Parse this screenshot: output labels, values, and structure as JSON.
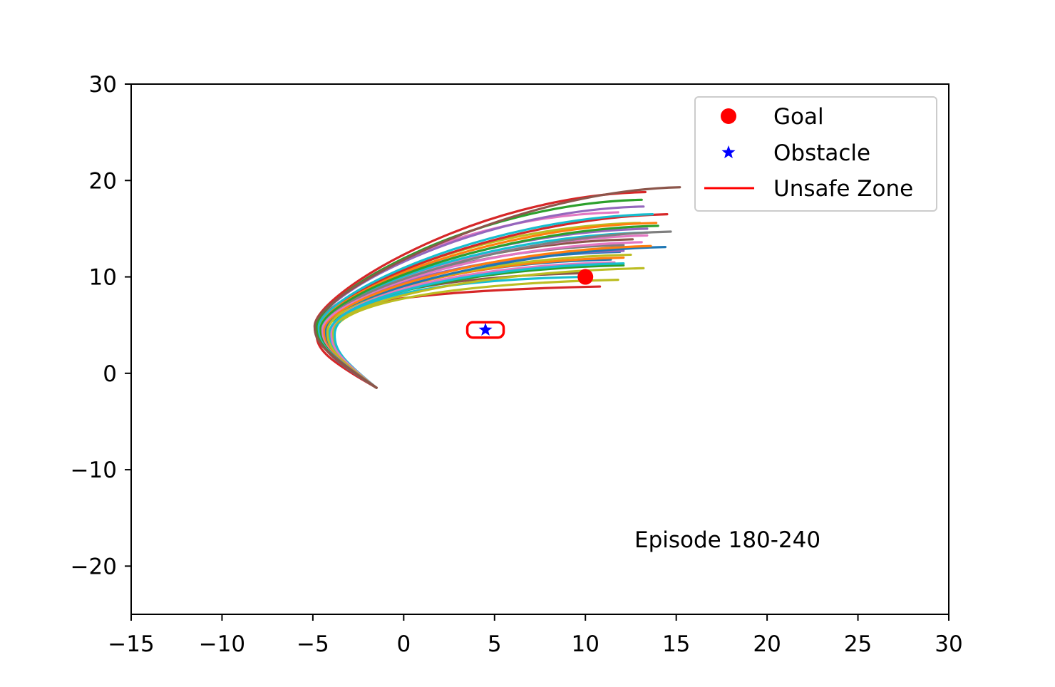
{
  "chart_data": {
    "type": "line",
    "xlim": [
      -15,
      30
    ],
    "ylim": [
      -25,
      30
    ],
    "x_ticks": [
      -15,
      -10,
      -5,
      0,
      5,
      10,
      15,
      20,
      25,
      30
    ],
    "y_ticks": [
      -20,
      -10,
      0,
      10,
      20,
      30
    ],
    "x_tick_labels": [
      "−15",
      "−10",
      "−5",
      "0",
      "5",
      "10",
      "15",
      "20",
      "25",
      "30"
    ],
    "y_tick_labels": [
      "−20",
      "−10",
      "0",
      "10",
      "20",
      "30"
    ],
    "grid": false,
    "legend_position": "top-right",
    "annotation": "Episode 180-240",
    "legend": [
      {
        "label": "Goal",
        "marker": "circle",
        "color": "#ff0000"
      },
      {
        "label": "Obstacle",
        "marker": "star",
        "color": "#0000ff"
      },
      {
        "label": "Unsafe Zone",
        "marker": "line",
        "color": "#ff0000"
      }
    ],
    "goal": {
      "x": 10,
      "y": 10
    },
    "obstacle": {
      "x": 4.5,
      "y": 4.5
    },
    "unsafe_zone": {
      "x_range": [
        3.5,
        5.5
      ],
      "y_range": [
        3.7,
        5.3
      ]
    },
    "trajectory_start": {
      "x": -1.5,
      "y": -1.5
    },
    "trajectories": [
      {
        "color": "#d62728",
        "turn": {
          "x": -4.8,
          "y": 4.2
        },
        "end": {
          "x": 10.8,
          "y": 9.0
        }
      },
      {
        "color": "#bcbd22",
        "turn": {
          "x": -3.9,
          "y": 4.0
        },
        "end": {
          "x": 11.8,
          "y": 9.7
        }
      },
      {
        "color": "#17becf",
        "turn": {
          "x": -3.8,
          "y": 4.0
        },
        "end": {
          "x": 9.8,
          "y": 10.0
        }
      },
      {
        "color": "#8c564b",
        "turn": {
          "x": -4.4,
          "y": 4.1
        },
        "end": {
          "x": 10.2,
          "y": 10.4
        }
      },
      {
        "color": "#bcbd22",
        "turn": {
          "x": -4.0,
          "y": 4.1
        },
        "end": {
          "x": 13.2,
          "y": 10.9
        }
      },
      {
        "color": "#2ca02c",
        "turn": {
          "x": -4.3,
          "y": 4.1
        },
        "end": {
          "x": 12.1,
          "y": 11.2
        }
      },
      {
        "color": "#e377c2",
        "turn": {
          "x": -4.0,
          "y": 4.2
        },
        "end": {
          "x": 11.6,
          "y": 11.5
        }
      },
      {
        "color": "#17becf",
        "turn": {
          "x": -4.1,
          "y": 4.1
        },
        "end": {
          "x": 12.1,
          "y": 11.4
        }
      },
      {
        "color": "#1f77b4",
        "turn": {
          "x": -4.3,
          "y": 4.2
        },
        "end": {
          "x": 11.4,
          "y": 11.8
        }
      },
      {
        "color": "#ff7f0e",
        "turn": {
          "x": -4.5,
          "y": 4.2
        },
        "end": {
          "x": 12.1,
          "y": 12.0
        }
      },
      {
        "color": "#bcbd22",
        "turn": {
          "x": -4.2,
          "y": 4.3
        },
        "end": {
          "x": 12.5,
          "y": 12.3
        }
      },
      {
        "color": "#1f77b4",
        "turn": {
          "x": -4.4,
          "y": 4.3
        },
        "end": {
          "x": 11.9,
          "y": 12.6
        }
      },
      {
        "color": "#9467bd",
        "turn": {
          "x": -4.4,
          "y": 4.4
        },
        "end": {
          "x": 12.1,
          "y": 12.7
        }
      },
      {
        "color": "#1f77b4",
        "turn": {
          "x": -4.6,
          "y": 4.3
        },
        "end": {
          "x": 14.4,
          "y": 13.1
        }
      },
      {
        "color": "#ff7f0e",
        "turn": {
          "x": -4.4,
          "y": 4.4
        },
        "end": {
          "x": 13.6,
          "y": 13.2
        }
      },
      {
        "color": "#7f7f7f",
        "turn": {
          "x": -4.5,
          "y": 4.4
        },
        "end": {
          "x": 12.1,
          "y": 13.3
        }
      },
      {
        "color": "#e377c2",
        "turn": {
          "x": -4.5,
          "y": 4.4
        },
        "end": {
          "x": 13.1,
          "y": 13.6
        }
      },
      {
        "color": "#8c564b",
        "turn": {
          "x": -4.6,
          "y": 4.5
        },
        "end": {
          "x": 12.6,
          "y": 13.9
        }
      },
      {
        "color": "#e377c2",
        "turn": {
          "x": -4.5,
          "y": 4.5
        },
        "end": {
          "x": 13.4,
          "y": 14.3
        }
      },
      {
        "color": "#17becf",
        "turn": {
          "x": -4.6,
          "y": 4.5
        },
        "end": {
          "x": 13.4,
          "y": 14.6
        }
      },
      {
        "color": "#7f7f7f",
        "turn": {
          "x": -4.7,
          "y": 4.5
        },
        "end": {
          "x": 14.7,
          "y": 14.7
        }
      },
      {
        "color": "#9467bd",
        "turn": {
          "x": -4.6,
          "y": 4.6
        },
        "end": {
          "x": 13.4,
          "y": 15.0
        }
      },
      {
        "color": "#2ca02c",
        "turn": {
          "x": -4.6,
          "y": 4.6
        },
        "end": {
          "x": 14.0,
          "y": 15.3
        }
      },
      {
        "color": "#bcbd22",
        "turn": {
          "x": -4.7,
          "y": 4.6
        },
        "end": {
          "x": 13.0,
          "y": 15.6
        }
      },
      {
        "color": "#ff7f0e",
        "turn": {
          "x": -4.7,
          "y": 4.7
        },
        "end": {
          "x": 13.9,
          "y": 15.6
        }
      },
      {
        "color": "#d62728",
        "turn": {
          "x": -4.8,
          "y": 4.7
        },
        "end": {
          "x": 14.5,
          "y": 16.5
        }
      },
      {
        "color": "#17becf",
        "turn": {
          "x": -4.7,
          "y": 4.7
        },
        "end": {
          "x": 13.7,
          "y": 16.5
        }
      },
      {
        "color": "#e377c2",
        "turn": {
          "x": -4.8,
          "y": 4.8
        },
        "end": {
          "x": 11.8,
          "y": 16.7
        }
      },
      {
        "color": "#9467bd",
        "turn": {
          "x": -4.8,
          "y": 4.8
        },
        "end": {
          "x": 13.2,
          "y": 17.3
        }
      },
      {
        "color": "#2ca02c",
        "turn": {
          "x": -4.8,
          "y": 4.8
        },
        "end": {
          "x": 13.1,
          "y": 18.0
        }
      },
      {
        "color": "#d62728",
        "turn": {
          "x": -4.9,
          "y": 4.9
        },
        "end": {
          "x": 13.3,
          "y": 18.8
        }
      },
      {
        "color": "#8c564b",
        "turn": {
          "x": -4.9,
          "y": 4.9
        },
        "end": {
          "x": 15.2,
          "y": 19.3
        }
      }
    ]
  }
}
